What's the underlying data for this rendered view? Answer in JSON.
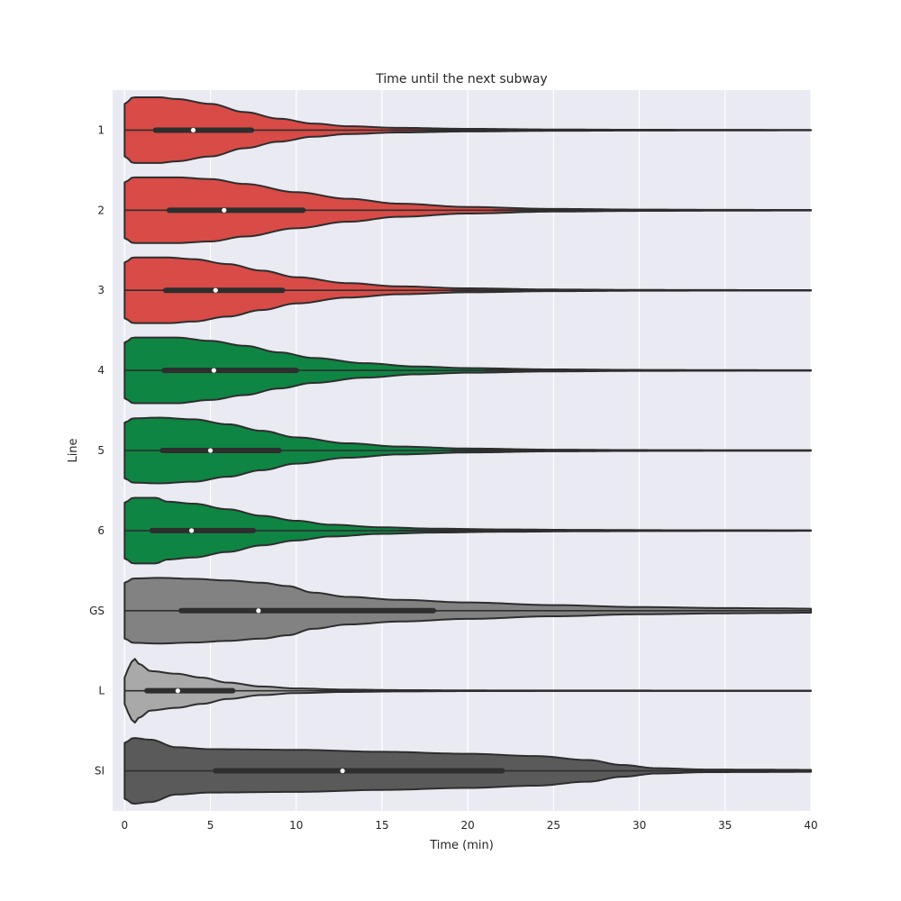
{
  "chart_data": {
    "type": "violin",
    "orientation": "horizontal",
    "title": "Time until the next subway",
    "xlabel": "Time (min)",
    "ylabel": "Line",
    "xlim": [
      -0.7,
      40
    ],
    "xticks": [
      0,
      5,
      10,
      15,
      20,
      25,
      30,
      35,
      40
    ],
    "grid": true,
    "legend": "none",
    "background_color": "#eaeaf2",
    "categories": [
      "1",
      "2",
      "3",
      "4",
      "5",
      "6",
      "GS",
      "L",
      "SI"
    ],
    "series": [
      {
        "category": "1",
        "color": "#d84b46",
        "q1": 1.8,
        "median": 4.0,
        "q3": 7.4,
        "whisker_max": 15.5,
        "density": [
          [
            0,
            0.8
          ],
          [
            0.5,
            1.0
          ],
          [
            2,
            1.0
          ],
          [
            3,
            0.95
          ],
          [
            5,
            0.8
          ],
          [
            7,
            0.55
          ],
          [
            9,
            0.35
          ],
          [
            11,
            0.2
          ],
          [
            13,
            0.12
          ],
          [
            16,
            0.07
          ],
          [
            20,
            0.04
          ],
          [
            25,
            0.02
          ],
          [
            30,
            0.012
          ],
          [
            35,
            0.008
          ],
          [
            40,
            0.006
          ]
        ]
      },
      {
        "category": "2",
        "color": "#d84b46",
        "q1": 2.6,
        "median": 5.8,
        "q3": 10.4,
        "whisker_max": 21.5,
        "density": [
          [
            0,
            0.85
          ],
          [
            0.5,
            1.0
          ],
          [
            3,
            1.0
          ],
          [
            5,
            0.95
          ],
          [
            7,
            0.8
          ],
          [
            10,
            0.55
          ],
          [
            13,
            0.35
          ],
          [
            16,
            0.2
          ],
          [
            20,
            0.1
          ],
          [
            25,
            0.04
          ],
          [
            30,
            0.02
          ],
          [
            35,
            0.012
          ],
          [
            40,
            0.008
          ]
        ]
      },
      {
        "category": "3",
        "color": "#d84b46",
        "q1": 2.4,
        "median": 5.3,
        "q3": 9.2,
        "whisker_max": 19.0,
        "density": [
          [
            0,
            0.85
          ],
          [
            0.5,
            1.0
          ],
          [
            2.5,
            1.0
          ],
          [
            4,
            0.95
          ],
          [
            6,
            0.8
          ],
          [
            8,
            0.6
          ],
          [
            10,
            0.4
          ],
          [
            13,
            0.22
          ],
          [
            16,
            0.12
          ],
          [
            20,
            0.06
          ],
          [
            25,
            0.025
          ],
          [
            30,
            0.012
          ],
          [
            35,
            0.008
          ],
          [
            40,
            0.006
          ]
        ]
      },
      {
        "category": "4",
        "color": "#0e8543",
        "q1": 2.3,
        "median": 5.2,
        "q3": 10.0,
        "whisker_max": 21.0,
        "density": [
          [
            0,
            0.85
          ],
          [
            0.5,
            1.0
          ],
          [
            3,
            1.0
          ],
          [
            5,
            0.9
          ],
          [
            7,
            0.75
          ],
          [
            9,
            0.55
          ],
          [
            11,
            0.38
          ],
          [
            14,
            0.22
          ],
          [
            17,
            0.12
          ],
          [
            20,
            0.07
          ],
          [
            25,
            0.03
          ],
          [
            30,
            0.015
          ],
          [
            35,
            0.009
          ],
          [
            40,
            0.006
          ]
        ]
      },
      {
        "category": "5",
        "color": "#0e8543",
        "q1": 2.2,
        "median": 5.0,
        "q3": 9.0,
        "whisker_max": 19.0,
        "density": [
          [
            0,
            0.85
          ],
          [
            0.5,
            0.98
          ],
          [
            2,
            1.0
          ],
          [
            4,
            0.95
          ],
          [
            6,
            0.8
          ],
          [
            8,
            0.6
          ],
          [
            10,
            0.4
          ],
          [
            13,
            0.22
          ],
          [
            16,
            0.12
          ],
          [
            20,
            0.06
          ],
          [
            25,
            0.025
          ],
          [
            30,
            0.012
          ],
          [
            35,
            0.008
          ],
          [
            40,
            0.006
          ]
        ]
      },
      {
        "category": "6",
        "color": "#0e8543",
        "q1": 1.6,
        "median": 3.9,
        "q3": 7.5,
        "whisker_max": 16.0,
        "density": [
          [
            0,
            0.85
          ],
          [
            0.5,
            1.0
          ],
          [
            1.8,
            1.0
          ],
          [
            2.5,
            0.88
          ],
          [
            4,
            0.82
          ],
          [
            6,
            0.65
          ],
          [
            8,
            0.45
          ],
          [
            10,
            0.3
          ],
          [
            12,
            0.18
          ],
          [
            15,
            0.1
          ],
          [
            18,
            0.06
          ],
          [
            22,
            0.035
          ],
          [
            27,
            0.02
          ],
          [
            32,
            0.012
          ],
          [
            40,
            0.008
          ]
        ]
      },
      {
        "category": "GS",
        "color": "#828282",
        "q1": 3.3,
        "median": 7.8,
        "q3": 18.0,
        "whisker_max": 40.0,
        "density": [
          [
            0,
            0.85
          ],
          [
            0.5,
            0.98
          ],
          [
            2,
            1.0
          ],
          [
            4,
            0.97
          ],
          [
            6,
            0.92
          ],
          [
            8,
            0.85
          ],
          [
            9.5,
            0.75
          ],
          [
            11,
            0.55
          ],
          [
            13,
            0.42
          ],
          [
            16,
            0.33
          ],
          [
            20,
            0.25
          ],
          [
            25,
            0.17
          ],
          [
            30,
            0.11
          ],
          [
            35,
            0.08
          ],
          [
            38,
            0.07
          ],
          [
            40,
            0.06
          ]
        ]
      },
      {
        "category": "L",
        "color": "#a9a9a9",
        "q1": 1.3,
        "median": 3.1,
        "q3": 6.3,
        "whisker_max": 13.5,
        "density": [
          [
            0,
            0.4
          ],
          [
            0.3,
            0.75
          ],
          [
            0.5,
            1.0
          ],
          [
            0.9,
            0.8
          ],
          [
            1.5,
            0.6
          ],
          [
            3,
            0.52
          ],
          [
            4.5,
            0.4
          ],
          [
            6,
            0.25
          ],
          [
            8,
            0.13
          ],
          [
            10,
            0.07
          ],
          [
            13,
            0.035
          ],
          [
            16,
            0.02
          ],
          [
            20,
            0.01
          ],
          [
            25,
            0.007
          ],
          [
            40,
            0.005
          ]
        ]
      },
      {
        "category": "SI",
        "color": "#5a5a5a",
        "q1": 5.3,
        "median": 12.7,
        "q3": 22.0,
        "whisker_max": 40.0,
        "density": [
          [
            0,
            0.85
          ],
          [
            0.5,
            1.0
          ],
          [
            1.5,
            0.95
          ],
          [
            3,
            0.72
          ],
          [
            5,
            0.66
          ],
          [
            10,
            0.64
          ],
          [
            15,
            0.58
          ],
          [
            20,
            0.52
          ],
          [
            24,
            0.45
          ],
          [
            27,
            0.33
          ],
          [
            29,
            0.18
          ],
          [
            31,
            0.08
          ],
          [
            34,
            0.04
          ],
          [
            37,
            0.035
          ],
          [
            40,
            0.03
          ]
        ]
      }
    ]
  }
}
